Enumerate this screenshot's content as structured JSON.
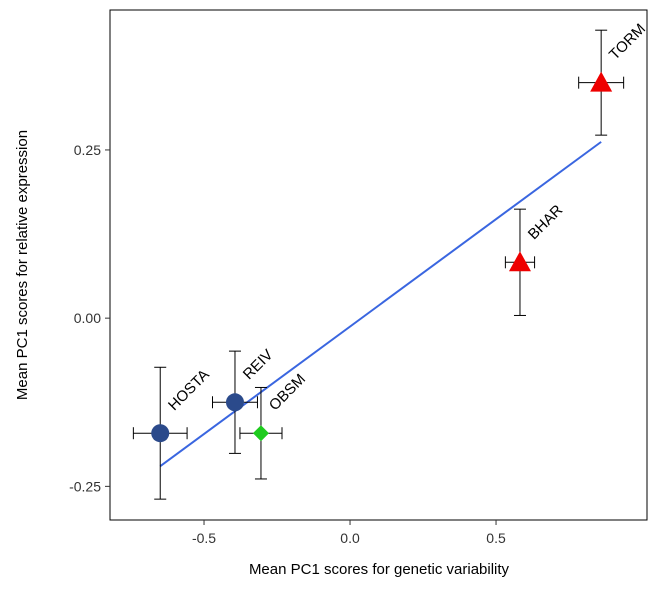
{
  "chart_data": {
    "type": "scatter",
    "x_label": "Mean PC1 scores for genetic variability",
    "y_label": "Mean PC1 scores for relative expression",
    "xlim": [
      -0.822,
      1.017
    ],
    "ylim": [
      -0.3,
      0.458
    ],
    "xticks": [
      -0.5,
      {
        "value": 0,
        "label": "0.0"
      },
      0.5
    ],
    "yticks": [
      -0.25,
      {
        "value": 0,
        "label": "0.00"
      },
      0.25
    ],
    "points": [
      {
        "label": "HOSTA",
        "x": -0.65,
        "y": -0.171,
        "xerr": 0.092,
        "yerr": 0.098,
        "shape": "circle",
        "color": "#2b4a8b"
      },
      {
        "label": "REIV",
        "x": -0.394,
        "y": -0.125,
        "xerr": 0.077,
        "yerr": 0.076,
        "shape": "circle",
        "color": "#2b4a8b"
      },
      {
        "label": "OBSM",
        "x": -0.305,
        "y": -0.171,
        "xerr": 0.072,
        "yerr": 0.068,
        "shape": "diamond",
        "color": "#1ecb1e"
      },
      {
        "label": "BHAR",
        "x": 0.582,
        "y": 0.083,
        "xerr": 0.05,
        "yerr": 0.079,
        "shape": "triangle",
        "color": "#ee0000"
      },
      {
        "label": "TORM",
        "x": 0.86,
        "y": 0.35,
        "xerr": 0.077,
        "yerr": 0.078,
        "shape": "triangle",
        "color": "#ee0000"
      }
    ],
    "fit": {
      "x": [
        -0.65,
        0.86
      ],
      "y": [
        -0.22,
        0.262
      ],
      "color": "#3a66e0"
    }
  }
}
